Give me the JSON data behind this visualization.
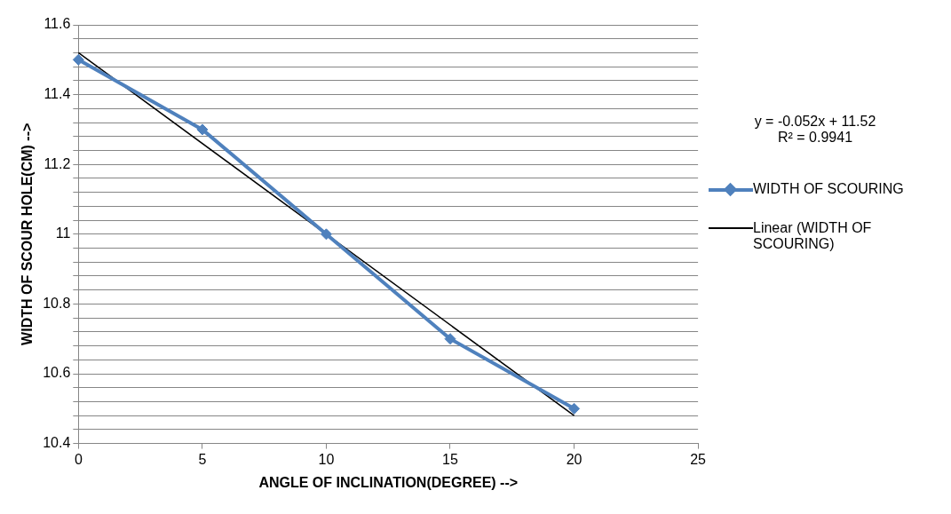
{
  "chart_data": {
    "type": "line",
    "xlabel": "ANGLE OF INCLINATION(DEGREE) -->",
    "ylabel": "WIDTH OF SCOUR HOLE(CM) -->",
    "x": [
      0,
      5,
      10,
      15,
      20
    ],
    "series": [
      {
        "name": "WIDTH OF SCOURING",
        "color": "#4f81bd",
        "values": [
          11.5,
          11.3,
          11.0,
          10.7,
          10.5
        ],
        "marker": "diamond"
      },
      {
        "name": "Linear (WIDTH OF SCOURING)",
        "type": "line",
        "color": "#000000",
        "x": [
          0,
          20
        ],
        "values": [
          11.52,
          10.48
        ],
        "marker": "none"
      }
    ],
    "xlim": [
      0,
      25
    ],
    "xticks": [
      0,
      5,
      10,
      15,
      20,
      25
    ],
    "ylim": [
      10.4,
      11.6
    ],
    "yticks": [
      10.4,
      {
        "value": 10.44,
        "label": null
      },
      {
        "value": 10.48,
        "label": null
      },
      {
        "value": 10.52,
        "label": null
      },
      {
        "value": 10.56,
        "label": null
      },
      10.6,
      {
        "value": 10.64,
        "label": null
      },
      {
        "value": 10.68,
        "label": null
      },
      {
        "value": 10.72,
        "label": null
      },
      {
        "value": 10.76,
        "label": null
      },
      10.8,
      {
        "value": 10.84,
        "label": null
      },
      {
        "value": 10.88,
        "label": null
      },
      {
        "value": 10.92,
        "label": null
      },
      {
        "value": 10.96,
        "label": null
      },
      {
        "value": 11,
        "label": "11"
      },
      {
        "value": 11.04,
        "label": null
      },
      {
        "value": 11.08,
        "label": null
      },
      {
        "value": 11.12,
        "label": null
      },
      {
        "value": 11.16,
        "label": null
      },
      11.2,
      {
        "value": 11.24,
        "label": null
      },
      {
        "value": 11.28,
        "label": null
      },
      {
        "value": 11.32,
        "label": null
      },
      {
        "value": 11.36,
        "label": null
      },
      11.4,
      {
        "value": 11.44,
        "label": null
      },
      {
        "value": 11.48,
        "label": null
      },
      {
        "value": 11.52,
        "label": null
      },
      {
        "value": 11.56,
        "label": null
      },
      11.6
    ],
    "grid": "y",
    "legend": "right",
    "annotations": [
      "y = -0.052x + 11.52",
      "R² = 0.9941"
    ]
  }
}
